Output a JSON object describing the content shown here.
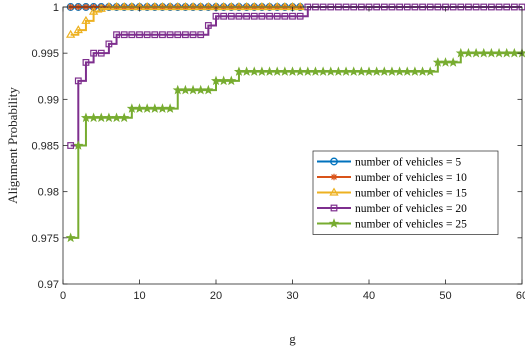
{
  "chart_data": {
    "type": "line",
    "title": "",
    "xlabel": "g",
    "ylabel": "Alignment Probability",
    "xlim": [
      0,
      60
    ],
    "ylim": [
      0.97,
      1.0
    ],
    "x_ticks": [
      "0",
      "10",
      "20",
      "30",
      "40",
      "50",
      "60"
    ],
    "y_ticks": [
      "0.97",
      "0.975",
      "0.98",
      "0.985",
      "0.99",
      "0.995",
      "1"
    ],
    "grid": false,
    "legend_position": "center-right",
    "series": [
      {
        "name": "number of vehicles = 5",
        "color": "#0072BD",
        "marker": "circle",
        "x": [
          1,
          2,
          3,
          4,
          5,
          6,
          7,
          8,
          9,
          10,
          11,
          12,
          13,
          14,
          15,
          16,
          17,
          18,
          19,
          20,
          21,
          22,
          23,
          24,
          25,
          26,
          27,
          28,
          29,
          30,
          31
        ],
        "y": [
          1,
          1,
          1,
          1,
          1,
          1,
          1,
          1,
          1,
          1,
          1,
          1,
          1,
          1,
          1,
          1,
          1,
          1,
          1,
          1,
          1,
          1,
          1,
          1,
          1,
          1,
          1,
          1,
          1,
          1,
          1
        ]
      },
      {
        "name": "number of vehicles = 10",
        "color": "#D95319",
        "marker": "asterisk",
        "x": [
          1,
          2,
          3,
          4,
          5,
          6,
          7,
          8,
          9,
          10,
          11,
          12,
          13,
          14,
          15,
          16,
          17,
          18,
          19,
          20,
          21,
          22,
          23,
          24,
          25,
          26,
          27,
          28,
          29,
          30,
          31
        ],
        "y": [
          1,
          1,
          1,
          1,
          1,
          1,
          1,
          1,
          1,
          1,
          1,
          1,
          1,
          1,
          1,
          1,
          1,
          1,
          1,
          1,
          1,
          1,
          1,
          1,
          1,
          1,
          1,
          1,
          1,
          1,
          1
        ]
      },
      {
        "name": "number of vehicles = 15",
        "color": "#EDB120",
        "marker": "triangle",
        "x": [
          1,
          2,
          3,
          4,
          5,
          6,
          7,
          8,
          9,
          10,
          11,
          12,
          13,
          14,
          15,
          16,
          17,
          18,
          19,
          20,
          21,
          22,
          23,
          24,
          25,
          26,
          27,
          28,
          29,
          30,
          31
        ],
        "y": [
          0.997,
          0.9975,
          0.9985,
          0.9995,
          0.9998,
          1,
          1,
          1,
          1,
          1,
          1,
          1,
          1,
          1,
          1,
          1,
          1,
          1,
          1,
          1,
          1,
          1,
          1,
          1,
          1,
          1,
          1,
          1,
          1,
          1,
          1
        ]
      },
      {
        "name": "number of vehicles = 20",
        "color": "#7E2F8E",
        "marker": "square",
        "x": [
          1,
          2,
          3,
          4,
          5,
          6,
          7,
          8,
          9,
          10,
          11,
          12,
          13,
          14,
          15,
          16,
          17,
          18,
          19,
          20,
          21,
          22,
          23,
          24,
          25,
          26,
          27,
          28,
          29,
          30,
          31,
          32,
          33,
          34,
          35,
          36,
          37,
          38,
          39,
          40,
          41,
          42,
          43,
          44,
          45,
          46,
          47,
          48,
          49,
          50,
          51,
          52,
          53,
          54,
          55,
          56,
          57,
          58,
          59,
          60
        ],
        "y": [
          0.985,
          0.992,
          0.994,
          0.995,
          0.995,
          0.996,
          0.997,
          0.997,
          0.997,
          0.997,
          0.997,
          0.997,
          0.997,
          0.997,
          0.997,
          0.997,
          0.997,
          0.997,
          0.998,
          0.999,
          0.999,
          0.999,
          0.999,
          0.999,
          0.999,
          0.999,
          0.999,
          0.999,
          0.999,
          0.999,
          0.999,
          1,
          1,
          1,
          1,
          1,
          1,
          1,
          1,
          1,
          1,
          1,
          1,
          1,
          1,
          1,
          1,
          1,
          1,
          1,
          1,
          1,
          1,
          1,
          1,
          1,
          1,
          1,
          1,
          1
        ]
      },
      {
        "name": "number of vehicles = 25",
        "color": "#77AC30",
        "marker": "pentagram",
        "x": [
          1,
          2,
          3,
          4,
          5,
          6,
          7,
          8,
          9,
          10,
          11,
          12,
          13,
          14,
          15,
          16,
          17,
          18,
          19,
          20,
          21,
          22,
          23,
          24,
          25,
          26,
          27,
          28,
          29,
          30,
          31,
          32,
          33,
          34,
          35,
          36,
          37,
          38,
          39,
          40,
          41,
          42,
          43,
          44,
          45,
          46,
          47,
          48,
          49,
          50,
          51,
          52,
          53,
          54,
          55,
          56,
          57,
          58,
          59,
          60
        ],
        "y": [
          0.975,
          0.985,
          0.988,
          0.988,
          0.988,
          0.988,
          0.988,
          0.988,
          0.989,
          0.989,
          0.989,
          0.989,
          0.989,
          0.989,
          0.991,
          0.991,
          0.991,
          0.991,
          0.991,
          0.992,
          0.992,
          0.992,
          0.993,
          0.993,
          0.993,
          0.993,
          0.993,
          0.993,
          0.993,
          0.993,
          0.993,
          0.993,
          0.993,
          0.993,
          0.993,
          0.993,
          0.993,
          0.993,
          0.993,
          0.993,
          0.993,
          0.993,
          0.993,
          0.993,
          0.993,
          0.993,
          0.993,
          0.993,
          0.994,
          0.994,
          0.994,
          0.995,
          0.995,
          0.995,
          0.995,
          0.995,
          0.995,
          0.995,
          0.995,
          0.995
        ]
      }
    ]
  }
}
